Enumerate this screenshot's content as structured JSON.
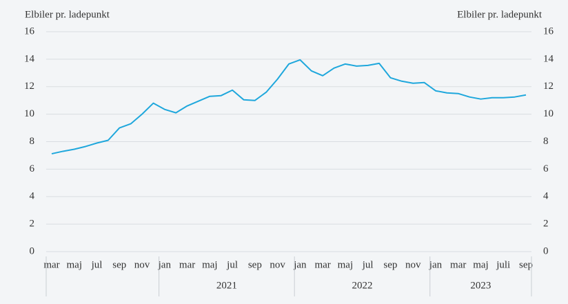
{
  "chart_data": {
    "type": "line",
    "ylabel": "Elbiler pr. ladepunkt",
    "y2label": "Elbiler pr. ladepunkt",
    "categories": [
      "mar",
      null,
      "maj",
      null,
      "jul",
      null,
      "sep",
      null,
      "nov",
      null,
      "jan",
      null,
      "mar",
      null,
      "maj",
      null,
      "jul",
      null,
      "sep",
      null,
      "nov",
      null,
      "jan",
      null,
      "mar",
      null,
      "maj",
      null,
      "jul",
      null,
      "sep",
      null,
      "nov",
      null,
      "jan",
      null,
      "mar",
      null,
      "maj",
      null,
      "juli",
      null,
      "sep"
    ],
    "groups": [
      "2021",
      "2022",
      "2023"
    ],
    "series": [
      {
        "color": "#1ea7dc",
        "values": [
          7.12,
          7.3,
          7.45,
          7.65,
          7.9,
          8.1,
          9.0,
          9.3,
          10.0,
          10.8,
          10.35,
          10.1,
          10.6,
          10.95,
          11.3,
          11.35,
          11.75,
          11.05,
          11.0,
          11.6,
          12.55,
          13.65,
          13.95,
          13.15,
          12.8,
          13.35,
          13.65,
          13.5,
          13.55,
          13.7,
          12.65,
          12.4,
          12.25,
          12.3,
          11.7,
          11.55,
          11.5,
          11.25,
          11.1,
          11.2,
          11.2,
          11.25,
          11.4
        ]
      }
    ],
    "ylim": [
      0,
      16
    ],
    "yticks": [
      0,
      2,
      4,
      6,
      8,
      10,
      12,
      14,
      16
    ],
    "y2lim": [
      0,
      16
    ],
    "y2ticks": [
      0,
      2,
      4,
      6,
      8,
      10,
      12,
      14,
      16
    ],
    "grid": true
  }
}
